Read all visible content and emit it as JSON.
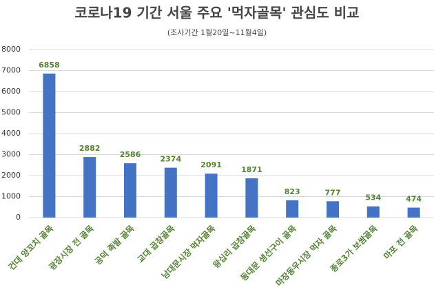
{
  "chart_data": {
    "type": "bar",
    "title": "코로나19 기간 서울 주요 '먹자골목' 관심도 비교",
    "subtitle": "(조사기간 1월20일~11월4일)",
    "categories": [
      "건대 양꼬치 골목",
      "광장시장 전 골목",
      "공덕 족발 골목",
      "교대 곱창골목",
      "남대문시장 먹자골목",
      "왕십리 곱창골목",
      "동대문 생선구이 골목",
      "마장동우시장 먹자 골목",
      "종로3가 보쌈골목",
      "마포 전 골목"
    ],
    "values": [
      6858,
      2882,
      2586,
      2374,
      2091,
      1871,
      823,
      777,
      534,
      474
    ],
    "color": "#4472c4",
    "label_color": "#548235",
    "ylim": [
      0,
      8000
    ],
    "yticks": [
      0,
      1000,
      2000,
      3000,
      4000,
      5000,
      6000,
      7000,
      8000
    ],
    "grid": true
  }
}
